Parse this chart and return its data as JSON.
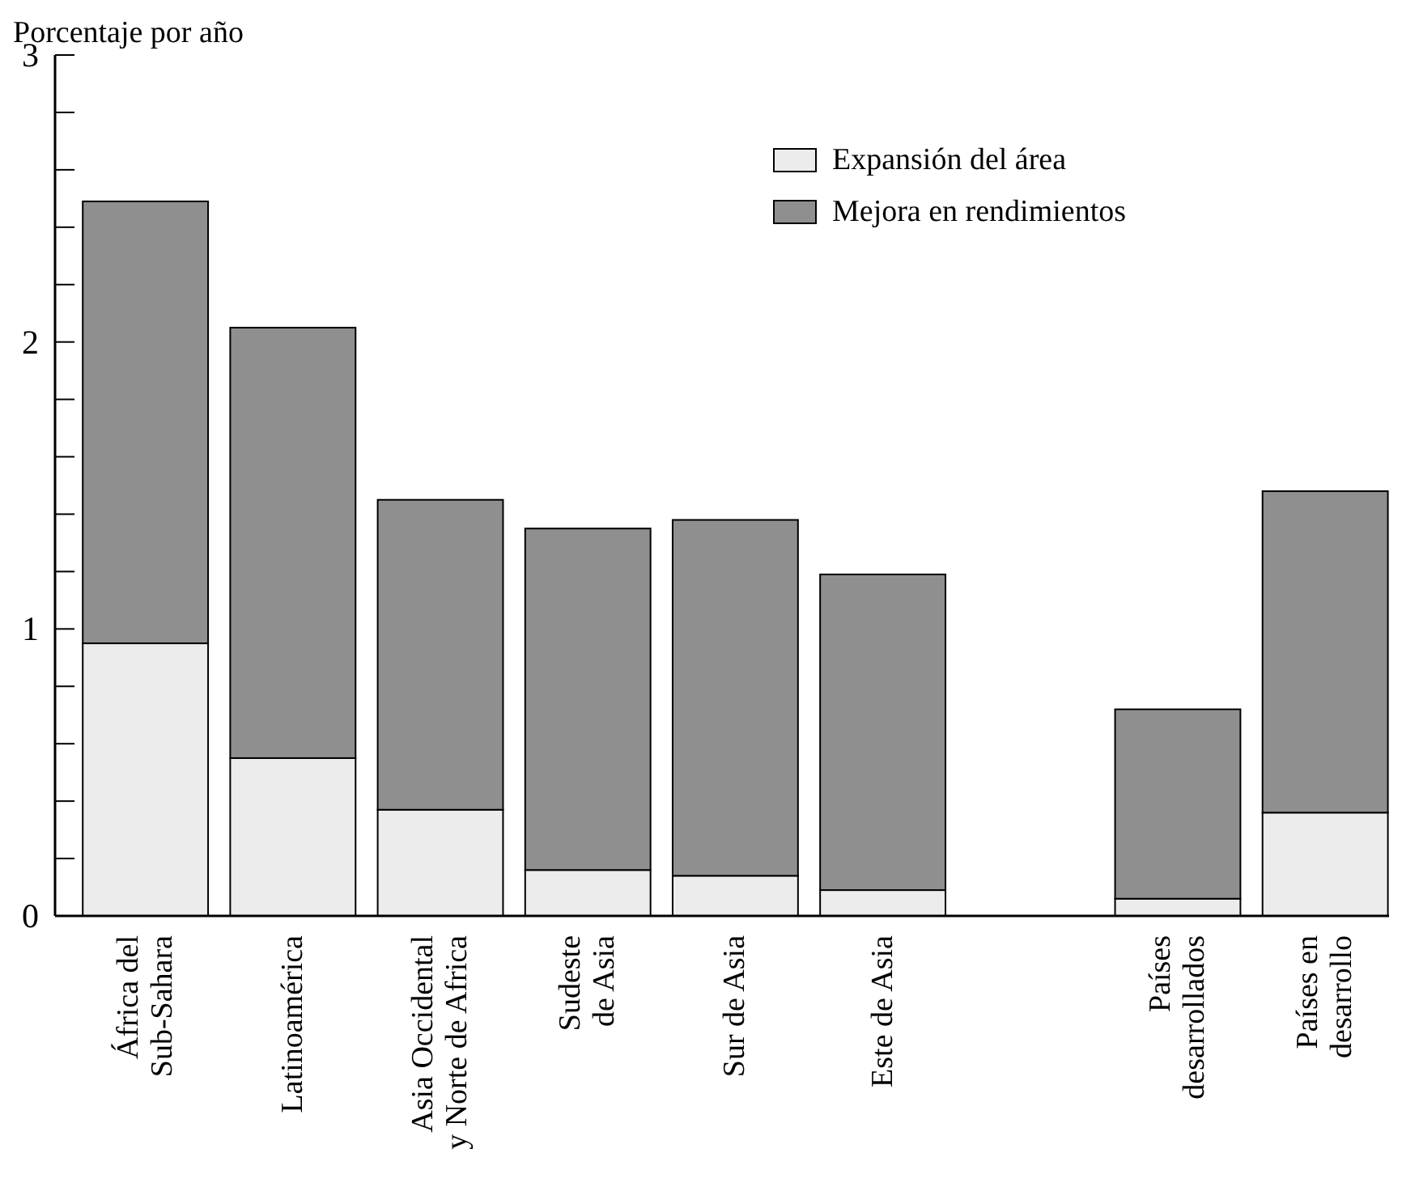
{
  "chart_data": {
    "type": "bar",
    "stacked": true,
    "ylabel": "Porcentaje por año",
    "categories": [
      "África del\nSub-Sahara",
      "Latinoamérica",
      "Asia Occidental\ny Norte de Africa",
      "Sudeste\nde Asia",
      "Sur de Asia",
      "Este de Asia",
      null,
      "Países\ndesarrollados",
      "Países en\ndesarrollo"
    ],
    "series": [
      {
        "name": "Expansión del área",
        "color": "#ececec",
        "values": [
          0.95,
          0.55,
          0.37,
          0.16,
          0.14,
          0.09,
          null,
          0.06,
          0.36
        ]
      },
      {
        "name": "Mejora en rendimientos",
        "color": "#8f8f8f",
        "values": [
          1.54,
          1.5,
          1.08,
          1.19,
          1.24,
          1.1,
          null,
          0.66,
          1.12
        ]
      }
    ],
    "ylim": [
      0,
      3
    ],
    "yticks": [
      0,
      {
        "value": 0.2,
        "label": null
      },
      {
        "value": 0.4,
        "label": null
      },
      {
        "value": 0.6,
        "label": null
      },
      {
        "value": 0.8,
        "label": null
      },
      1,
      {
        "value": 1.2,
        "label": null
      },
      {
        "value": 1.4,
        "label": null
      },
      {
        "value": 1.6,
        "label": null
      },
      {
        "value": 1.8,
        "label": null
      },
      2,
      {
        "value": 2.2,
        "label": null
      },
      {
        "value": 2.4,
        "label": null
      },
      {
        "value": 2.6,
        "label": null
      },
      {
        "value": 2.8,
        "label": null
      },
      3
    ],
    "legend": "top right"
  }
}
